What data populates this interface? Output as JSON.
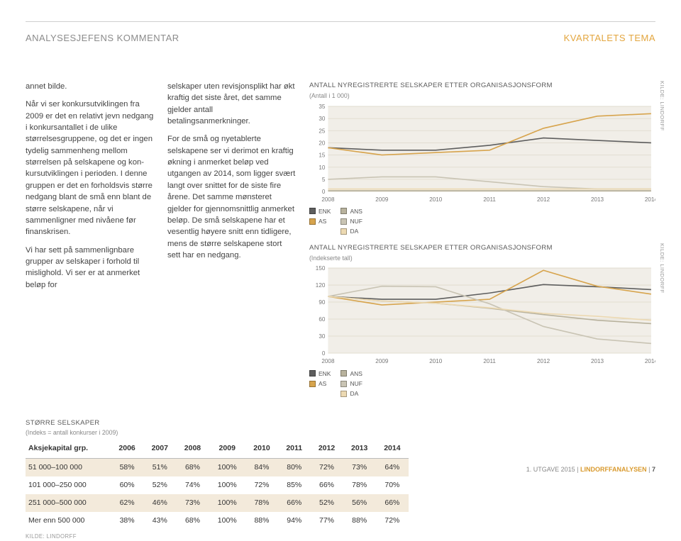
{
  "header": {
    "left": "ANALYSESJEFENS KOMMENTAR",
    "right": "KVARTALETS TEMA"
  },
  "body": {
    "col1": [
      "annet bilde.",
      "Når vi ser konkursut­viklingen fra 2009 er det en relativt jevn nedgang i konkursantallet i de ulike størrelsesgruppene, og det er ingen tydelig sammenheng mellom størrelsen på selskapene og kon­kursutviklingen i perioden. I denne gruppen er det en forholdsvis større nedgang blant de små enn blant de større selskapene, når vi sammenlig­ner med nivåene før finanskrisen.",
      "Vi har sett på sammenlignbare grup­per av selskaper i forhold til mislig­hold. Vi ser er at anmerket beløp for"
    ],
    "col2": [
      "selskaper uten revisjonsplikt har økt kraftig det siste året, det samme gjel­der antall betalingsanmerkninger.",
      "For de små og nyetablerte selskape­ne ser vi derimot en kraftig økning i anmerket beløp ved utgangen av 2014, som ligger svært langt over snittet for de siste fire årene. Det samme mønsteret gjelder for gjen­nomsnittlig anmerket beløp. De små selskapene har et vesentlig høyere snitt enn tidligere, mens de større sel­skapene stort sett har en nedgang."
    ]
  },
  "chart1": {
    "title": "ANTALL NYREGISTRERTE SELSKAPER ETTER ORGANISASJONSFORM",
    "subtitle": "(Antall i 1 000)",
    "source": "KILDE: LINDORFF",
    "xlabels": [
      "2008",
      "2009",
      "2010",
      "2011",
      "2012",
      "2013",
      "2014"
    ],
    "ylim": [
      0,
      35
    ],
    "yticks": [
      0,
      5,
      10,
      15,
      20,
      25,
      30,
      35
    ],
    "background": "#f1eee8",
    "grid_color": "#e2ddd1",
    "series": [
      {
        "name": "ENK",
        "color": "#5e5e5e",
        "values": [
          18,
          17,
          17,
          19,
          22,
          21,
          20
        ]
      },
      {
        "name": "AS",
        "color": "#d7a44d",
        "values": [
          18,
          15,
          16,
          17,
          26,
          31,
          32
        ]
      },
      {
        "name": "ANS",
        "color": "#b8b29d",
        "values": [
          0.3,
          0.3,
          0.3,
          0.3,
          0.3,
          0.3,
          0.3
        ]
      },
      {
        "name": "NUF",
        "color": "#c9c4b4",
        "values": [
          5,
          6,
          6,
          4,
          2,
          1,
          1
        ]
      },
      {
        "name": "DA",
        "color": "#ecd9b2",
        "values": [
          1,
          1,
          1,
          1,
          1,
          1,
          1
        ]
      }
    ]
  },
  "chart2": {
    "title": "ANTALL NYREGISTRERTE SELSKAPER ETTER ORGANISASJONSFORM",
    "subtitle": "(Indekserte tall)",
    "source": "KILDE: LINDORFF",
    "xlabels": [
      "2008",
      "2009",
      "2010",
      "2011",
      "2012",
      "2013",
      "2014"
    ],
    "ylim": [
      0,
      150
    ],
    "yticks": [
      0,
      30,
      60,
      90,
      120,
      150
    ],
    "background": "#f1eee8",
    "grid_color": "#e2ddd1",
    "series": [
      {
        "name": "ENK",
        "color": "#5e5e5e",
        "values": [
          100,
          95,
          95,
          106,
          121,
          117,
          112
        ]
      },
      {
        "name": "AS",
        "color": "#d7a44d",
        "values": [
          100,
          85,
          90,
          95,
          146,
          118,
          104
        ]
      },
      {
        "name": "ANS",
        "color": "#b8b29d",
        "values": [
          100,
          92,
          88,
          79,
          68,
          58,
          52
        ]
      },
      {
        "name": "NUF",
        "color": "#c9c4b4",
        "values": [
          100,
          118,
          117,
          87,
          47,
          25,
          17
        ]
      },
      {
        "name": "DA",
        "color": "#ecd9b2",
        "values": [
          100,
          92,
          88,
          80,
          70,
          65,
          58
        ]
      }
    ]
  },
  "legend": {
    "items": [
      {
        "name": "ENK",
        "color": "#5e5e5e"
      },
      {
        "name": "AS",
        "color": "#d7a44d"
      },
      {
        "name": "ANS",
        "color": "#b8b29d"
      },
      {
        "name": "NUF",
        "color": "#c9c4b4"
      },
      {
        "name": "DA",
        "color": "#ecd9b2"
      }
    ]
  },
  "table": {
    "title": "STØRRE SELSKAPER",
    "subtitle": "(Indeks = antall konkurser i 2009)",
    "source": "KILDE: LINDORFF",
    "row_label_header": "Aksjekapital grp.",
    "columns": [
      "2006",
      "2007",
      "2008",
      "2009",
      "2010",
      "2011",
      "2012",
      "2013",
      "2014"
    ],
    "rows": [
      {
        "label": "51 000–100 000",
        "cells": [
          "58%",
          "51%",
          "68%",
          "100%",
          "84%",
          "80%",
          "72%",
          "73%",
          "64%"
        ]
      },
      {
        "label": "101 000–250 000",
        "cells": [
          "60%",
          "52%",
          "74%",
          "100%",
          "72%",
          "85%",
          "66%",
          "78%",
          "70%"
        ]
      },
      {
        "label": "251 000–500 000",
        "cells": [
          "62%",
          "46%",
          "73%",
          "100%",
          "78%",
          "66%",
          "52%",
          "56%",
          "66%"
        ]
      },
      {
        "label": "Mer enn 500 000",
        "cells": [
          "38%",
          "43%",
          "68%",
          "100%",
          "88%",
          "94%",
          "77%",
          "88%",
          "72%"
        ]
      }
    ],
    "row_odd_bg": "#f3eadb"
  },
  "footer": {
    "issue": "1. UTGAVE 2015",
    "publication": "LINDORFFANALYSEN",
    "page": "7",
    "separator": " | "
  }
}
